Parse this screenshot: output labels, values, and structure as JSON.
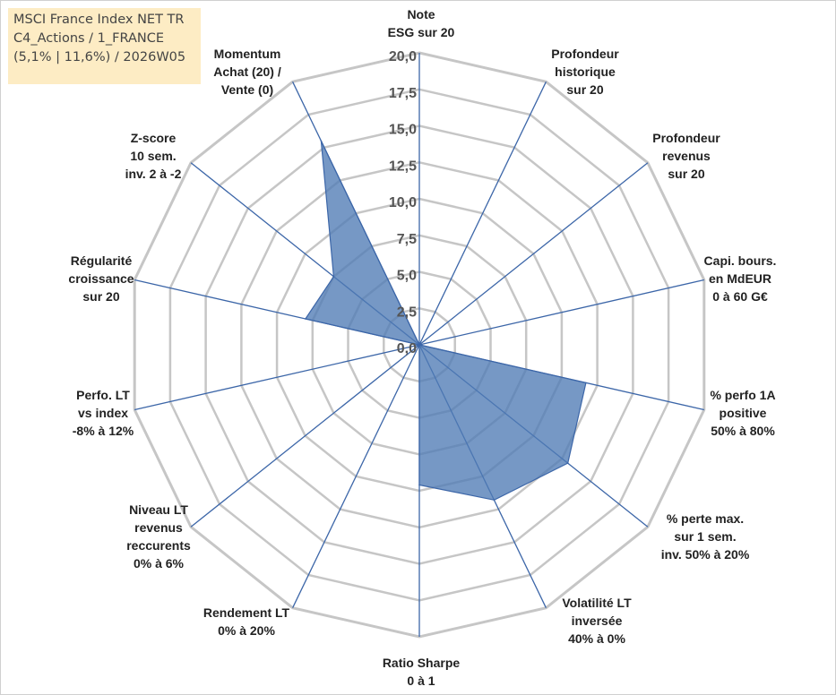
{
  "title_box": {
    "line1": "MSCI France Index NET TR",
    "line2": "C4_Actions / 1_FRANCE",
    "line3": "(5,1% | 11,6%) / 2026W05"
  },
  "colors": {
    "fill": "#4f7bb5",
    "stroke": "#3c66a8",
    "grid": "#c6c6c6",
    "spoke": "#3c66a8",
    "title_bg": "#fdecc4"
  },
  "chart_data": {
    "type": "radar",
    "rlim": [
      0,
      20
    ],
    "grid": true,
    "ticks": [
      "0,0",
      "2,5",
      "5,0",
      "7,5",
      "10,0",
      "12,5",
      "15,0",
      "17,5",
      "20,0"
    ],
    "axes": [
      [
        "Note",
        "ESG sur 20"
      ],
      [
        "Profondeur",
        "historique",
        "sur 20"
      ],
      [
        "Profondeur",
        "revenus",
        "sur 20"
      ],
      [
        "Capi. bours.",
        "en MdEUR",
        "0 à 60 G€"
      ],
      [
        "% perfo 1A",
        "positive",
        "50% à 80%"
      ],
      [
        "% perte max.",
        "sur 1 sem.",
        "inv. 50% à 20%"
      ],
      [
        "Volatilité LT",
        "inversée",
        "40% à 0%"
      ],
      [
        "Ratio Sharpe",
        "0 à 1"
      ],
      [
        "Rendement LT",
        "0% à 20%"
      ],
      [
        "Niveau LT",
        "revenus",
        "reccurents",
        "0% à 6%"
      ],
      [
        "Perfo. LT",
        "vs index",
        "-8% à 12%"
      ],
      [
        "Régularité",
        "croissance",
        "sur 20"
      ],
      [
        "Z-score",
        "10 sem.",
        "inv. 2 à -2"
      ],
      [
        "Momentum",
        "Achat (20) /",
        "Vente (0)"
      ]
    ],
    "series": [
      {
        "values": [
          0,
          0,
          0,
          0,
          11.7,
          13.0,
          11.8,
          9.6,
          0,
          0,
          0,
          8.0,
          7.5,
          15.5
        ]
      }
    ]
  }
}
